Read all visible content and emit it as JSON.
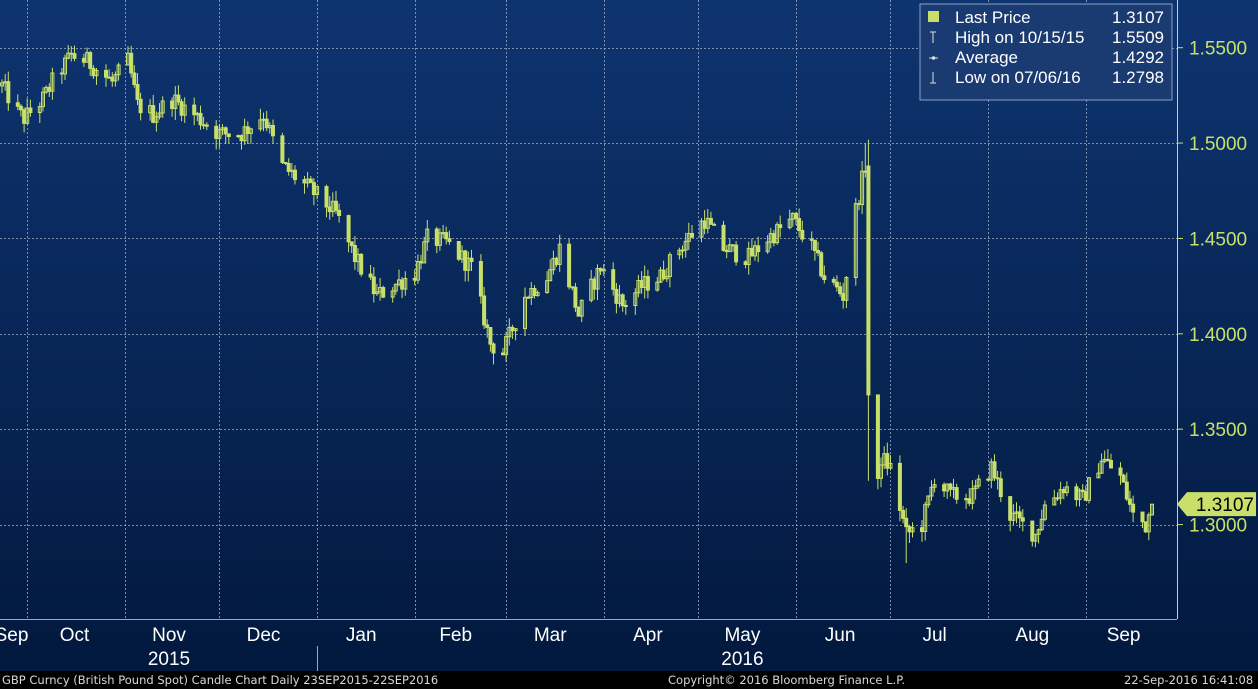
{
  "chart_data": {
    "type": "candlestick",
    "instrument": "GBP Curncy (British Pound Spot) Candle Chart",
    "period": "Daily 23SEP2015-22SEP2016",
    "x_month_labels": [
      "Sep",
      "Oct",
      "Nov",
      "Dec",
      "Jan",
      "Feb",
      "Mar",
      "Apr",
      "May",
      "Jun",
      "Jul",
      "Aug",
      "Sep"
    ],
    "x_year_labels": [
      "2015",
      "2016"
    ],
    "y_ticks": [
      "1.5500",
      "1.5000",
      "1.4500",
      "1.4000",
      "1.3500",
      "1.3000"
    ],
    "ylim": [
      1.2505,
      1.575
    ],
    "grid": true,
    "legend_position": "top-right",
    "legend": [
      {
        "label": "Last Price",
        "value": "1.3107"
      },
      {
        "label": "High on 10/15/15",
        "value": "1.5509"
      },
      {
        "label": "Average",
        "value": "1.4292"
      },
      {
        "label": "Low on 07/06/16",
        "value": "1.2798"
      }
    ],
    "last_price_tag": "1.3107",
    "close_path": [
      {
        "date": "2015-09-23",
        "close": 1.53
      },
      {
        "date": "2015-09-28",
        "close": 1.516
      },
      {
        "date": "2015-09-30",
        "close": 1.513
      },
      {
        "date": "2015-10-06",
        "close": 1.523
      },
      {
        "date": "2015-10-09",
        "close": 1.532
      },
      {
        "date": "2015-10-15",
        "close": 1.546
      },
      {
        "date": "2015-10-20",
        "close": 1.543
      },
      {
        "date": "2015-10-28",
        "close": 1.532
      },
      {
        "date": "2015-11-02",
        "close": 1.543
      },
      {
        "date": "2015-11-05",
        "close": 1.52
      },
      {
        "date": "2015-11-10",
        "close": 1.515
      },
      {
        "date": "2015-11-16",
        "close": 1.523
      },
      {
        "date": "2015-11-23",
        "close": 1.515
      },
      {
        "date": "2015-12-01",
        "close": 1.505
      },
      {
        "date": "2015-12-08",
        "close": 1.505
      },
      {
        "date": "2015-12-15",
        "close": 1.515
      },
      {
        "date": "2015-12-21",
        "close": 1.488
      },
      {
        "date": "2015-12-31",
        "close": 1.474
      },
      {
        "date": "2016-01-07",
        "close": 1.463
      },
      {
        "date": "2016-01-13",
        "close": 1.44
      },
      {
        "date": "2016-01-20",
        "close": 1.42
      },
      {
        "date": "2016-01-25",
        "close": 1.425
      },
      {
        "date": "2016-02-01",
        "close": 1.432
      },
      {
        "date": "2016-02-05",
        "close": 1.45
      },
      {
        "date": "2016-02-11",
        "close": 1.448
      },
      {
        "date": "2016-02-19",
        "close": 1.435
      },
      {
        "date": "2016-02-25",
        "close": 1.395
      },
      {
        "date": "2016-02-29",
        "close": 1.39
      },
      {
        "date": "2016-03-07",
        "close": 1.42
      },
      {
        "date": "2016-03-14",
        "close": 1.43
      },
      {
        "date": "2016-03-18",
        "close": 1.445
      },
      {
        "date": "2016-03-24",
        "close": 1.41
      },
      {
        "date": "2016-03-31",
        "close": 1.435
      },
      {
        "date": "2016-04-07",
        "close": 1.415
      },
      {
        "date": "2016-04-13",
        "close": 1.425
      },
      {
        "date": "2016-04-19",
        "close": 1.43
      },
      {
        "date": "2016-04-25",
        "close": 1.445
      },
      {
        "date": "2016-05-03",
        "close": 1.46
      },
      {
        "date": "2016-05-09",
        "close": 1.445
      },
      {
        "date": "2016-05-17",
        "close": 1.44
      },
      {
        "date": "2016-05-23",
        "close": 1.45
      },
      {
        "date": "2016-05-31",
        "close": 1.46
      },
      {
        "date": "2016-06-06",
        "close": 1.445
      },
      {
        "date": "2016-06-10",
        "close": 1.43
      },
      {
        "date": "2016-06-16",
        "close": 1.42
      },
      {
        "date": "2016-06-20",
        "close": 1.465
      },
      {
        "date": "2016-06-23",
        "close": 1.488
      },
      {
        "date": "2016-06-24",
        "close": 1.368
      },
      {
        "date": "2016-06-27",
        "close": 1.32
      },
      {
        "date": "2016-06-28",
        "close": 1.335
      },
      {
        "date": "2016-07-01",
        "close": 1.33
      },
      {
        "date": "2016-07-06",
        "close": 1.295
      },
      {
        "date": "2016-07-11",
        "close": 1.3
      },
      {
        "date": "2016-07-15",
        "close": 1.325
      },
      {
        "date": "2016-07-20",
        "close": 1.315
      },
      {
        "date": "2016-07-27",
        "close": 1.315
      },
      {
        "date": "2016-08-02",
        "close": 1.33
      },
      {
        "date": "2016-08-08",
        "close": 1.305
      },
      {
        "date": "2016-08-16",
        "close": 1.295
      },
      {
        "date": "2016-08-19",
        "close": 1.31
      },
      {
        "date": "2016-08-25",
        "close": 1.32
      },
      {
        "date": "2016-08-31",
        "close": 1.313
      },
      {
        "date": "2016-09-06",
        "close": 1.335
      },
      {
        "date": "2016-09-12",
        "close": 1.325
      },
      {
        "date": "2016-09-16",
        "close": 1.305
      },
      {
        "date": "2016-09-20",
        "close": 1.3
      },
      {
        "date": "2016-09-22",
        "close": 1.3107
      }
    ]
  },
  "footer": {
    "left": "GBP Curncy (British Pound Spot) Candle Chart  Daily 23SEP2015-22SEP2016",
    "center": "Copyright© 2016 Bloomberg Finance L.P.",
    "right": "22-Sep-2016 16:41:08"
  },
  "colors": {
    "background_top": "#0e3470",
    "background_bottom": "#031a40",
    "candle": "#c8e06a",
    "legend_bg": "#1a3a72",
    "tag": "#c8e06a"
  }
}
